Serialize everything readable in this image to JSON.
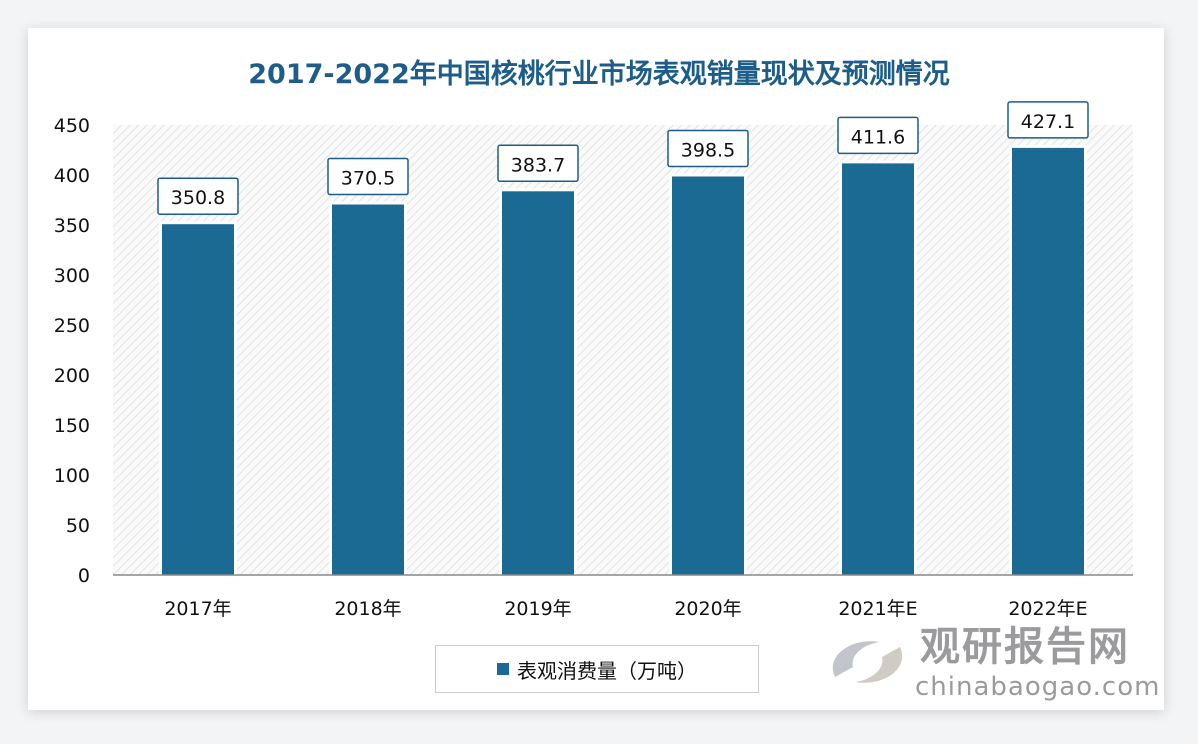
{
  "chart_data": {
    "type": "bar",
    "title": "2017-2022年中国核桃行业市场表观销量现状及预测情况",
    "categories": [
      "2017年",
      "2018年",
      "2019年",
      "2020年",
      "2021年E",
      "2022年E"
    ],
    "series": [
      {
        "name": "表观消费量（万吨）",
        "values": [
          350.8,
          370.5,
          383.7,
          398.5,
          411.6,
          427.1
        ]
      }
    ],
    "value_labels": [
      "350.8",
      "370.5",
      "383.7",
      "398.5",
      "411.6",
      "427.1"
    ],
    "ylim": [
      0,
      450
    ],
    "yticks": [
      "0",
      "50",
      "100",
      "150",
      "200",
      "250",
      "300",
      "350",
      "400",
      "450"
    ],
    "xlabel": "",
    "ylabel": "",
    "legend_position": "bottom",
    "bar_color": "#1b6a94"
  },
  "watermark": {
    "name": "观研报告网",
    "url": "chinabaogao.com"
  }
}
